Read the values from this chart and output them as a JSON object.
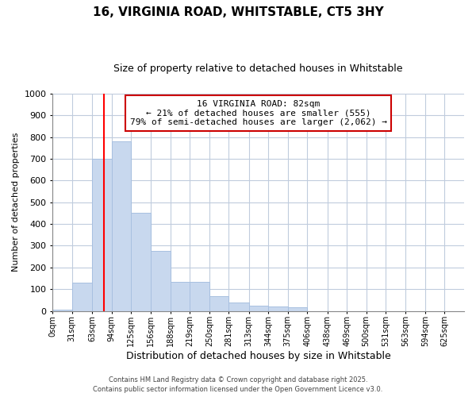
{
  "title": "16, VIRGINIA ROAD, WHITSTABLE, CT5 3HY",
  "subtitle": "Size of property relative to detached houses in Whitstable",
  "xlabel": "Distribution of detached houses by size in Whitstable",
  "ylabel": "Number of detached properties",
  "bar_color": "#c8d8ee",
  "bar_edge_color": "#a8c0e0",
  "background_color": "#ffffff",
  "plot_bg_color": "#ffffff",
  "grid_color": "#c0ccdd",
  "ylim": [
    0,
    1000
  ],
  "yticks": [
    0,
    100,
    200,
    300,
    400,
    500,
    600,
    700,
    800,
    900,
    1000
  ],
  "bins": [
    0,
    31,
    63,
    94,
    125,
    156,
    188,
    219,
    250,
    281,
    313,
    344,
    375,
    406,
    438,
    469,
    500,
    531,
    563,
    594,
    625,
    656
  ],
  "values": [
    5,
    130,
    700,
    780,
    450,
    275,
    135,
    135,
    68,
    40,
    25,
    20,
    18,
    0,
    0,
    0,
    0,
    0,
    0,
    0,
    0
  ],
  "red_line_x": 82,
  "annotation_line1": "16 VIRGINIA ROAD: 82sqm",
  "annotation_line2": "← 21% of detached houses are smaller (555)",
  "annotation_line3": "79% of semi-detached houses are larger (2,062) →",
  "annotation_box_color": "#ffffff",
  "annotation_box_edge_color": "#cc0000",
  "footnote1": "Contains HM Land Registry data © Crown copyright and database right 2025.",
  "footnote2": "Contains public sector information licensed under the Open Government Licence v3.0.",
  "title_fontsize": 11,
  "subtitle_fontsize": 9,
  "annotation_fontsize": 8,
  "xlabel_fontsize": 9,
  "ylabel_fontsize": 8,
  "footnote_fontsize": 6
}
